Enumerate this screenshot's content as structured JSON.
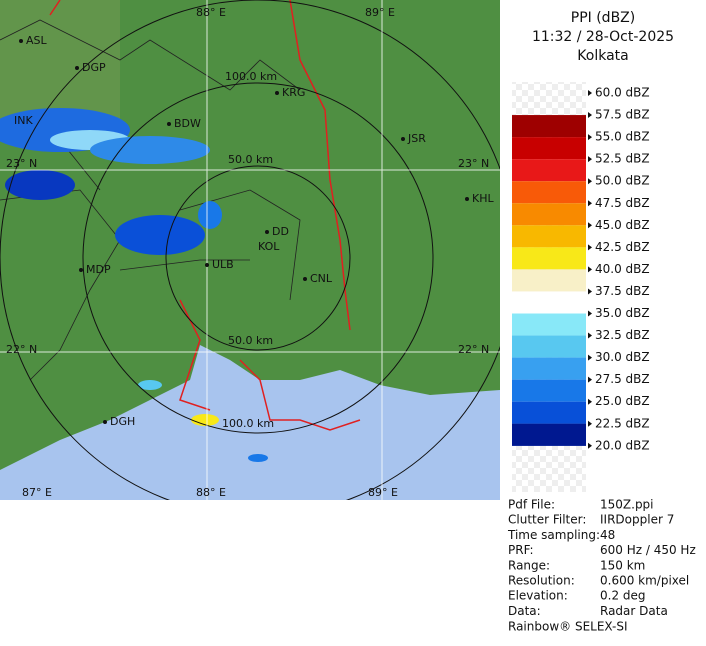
{
  "header": {
    "title": "PPI (dBZ)",
    "time": "11:32 / 28-Oct-2025",
    "site": "Kolkata"
  },
  "legend": [
    {
      "label": "60.0 dBZ"
    },
    {
      "label": "57.5 dBZ",
      "color": "#9e0000"
    },
    {
      "label": "55.0 dBZ",
      "color": "#c80000"
    },
    {
      "label": "52.5 dBZ",
      "color": "#e81818"
    },
    {
      "label": "50.0 dBZ",
      "color": "#f85a08"
    },
    {
      "label": "47.5 dBZ",
      "color": "#f88a00"
    },
    {
      "label": "45.0 dBZ",
      "color": "#f8b800"
    },
    {
      "label": "42.5 dBZ",
      "color": "#f8e818"
    },
    {
      "label": "40.0 dBZ",
      "color": "#f8f0c8"
    },
    {
      "label": "37.5 dBZ",
      "color": "#ffffff"
    },
    {
      "label": "35.0 dBZ",
      "color": "#88e8f8"
    },
    {
      "label": "32.5 dBZ",
      "color": "#58c8f0"
    },
    {
      "label": "30.0 dBZ",
      "color": "#38a0f0"
    },
    {
      "label": "27.5 dBZ",
      "color": "#1878e8"
    },
    {
      "label": "25.0 dBZ",
      "color": "#0850d8"
    },
    {
      "label": "22.5 dBZ",
      "color": "#0030b8"
    },
    {
      "label": "20.0 dBZ",
      "color": "#001890"
    }
  ],
  "map_labels": [
    "88° E",
    "89° E",
    "ASL",
    "DGP",
    "100.0 km",
    "KRG",
    "BDW",
    "JSR",
    "INK",
    "23° N",
    "50.0 km",
    "23° N",
    "KHL",
    "DD",
    "KOL",
    "MDP",
    "ULB",
    "CNL",
    "50.0 km",
    "22° N",
    "22° N",
    "DGH",
    "100.0 km",
    "87° E",
    "88° E",
    "89° E"
  ],
  "info": [
    [
      "Pdf File:",
      "150Z.ppi"
    ],
    [
      "Clutter Filter:",
      "IIRDoppler 7"
    ],
    [
      "Time sampling:",
      "48"
    ],
    [
      "PRF:",
      "600 Hz / 450 Hz"
    ],
    [
      "Range:",
      "150 km"
    ],
    [
      "Resolution:",
      "0.600 km/pixel"
    ],
    [
      "Elevation:",
      "0.2 deg"
    ],
    [
      "Data:",
      "Radar Data"
    ]
  ],
  "footer": "Rainbow® SELEX-SI"
}
